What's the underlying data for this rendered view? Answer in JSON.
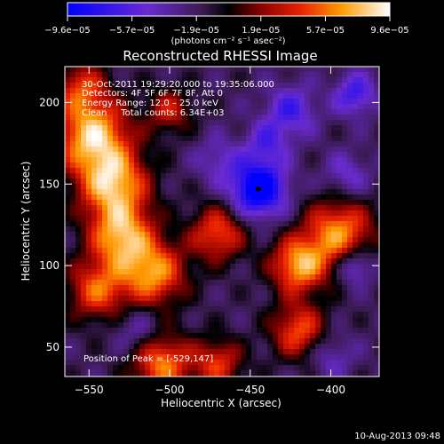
{
  "chart_data": {
    "type": "heatmap",
    "title": "Reconstructed RHESSI Image",
    "xlabel": "Heliocentric X (arcsec)",
    "ylabel": "Heliocentric Y (arcsec)",
    "xlim": [
      -565,
      -370
    ],
    "ylim": [
      32,
      222
    ],
    "x_ticks": [
      -550,
      -500,
      -450,
      -400
    ],
    "y_ticks": [
      50,
      100,
      150,
      200
    ],
    "x_tick_labels": [
      "−550",
      "−500",
      "−450",
      "−400"
    ],
    "y_tick_labels": [
      "50",
      "100",
      "150",
      "200"
    ],
    "colorbar": {
      "min": -9.6e-05,
      "max": 9.6e-05,
      "tick_labels": [
        "−9.6e−05",
        "−5.7e−05",
        "−1.9e−05",
        "1.9e−05",
        "5.7e−05",
        "9.6e−05"
      ],
      "units": "(photons cm⁻² s⁻¹ asec⁻²)"
    },
    "info_lines": [
      "30-Oct-2011 19:29:20.000 to 19:35:06.000",
      "Detectors: 4F 5F 6F 7F 8F, Att 0",
      "Energy Range: 12.0 – 25.0 keV",
      "Clean     Total counts: 6.34E+03"
    ],
    "peak": {
      "x": -529,
      "y": 147,
      "label": "Position of Peak = [-529,147]"
    },
    "blobs": [
      {
        "x": -548,
        "y": 180,
        "amp": 1.0,
        "r": 16
      },
      {
        "x": -535,
        "y": 150,
        "amp": 0.95,
        "r": 15
      },
      {
        "x": -530,
        "y": 118,
        "amp": 0.9,
        "r": 14
      },
      {
        "x": -510,
        "y": 95,
        "amp": 0.85,
        "r": 14
      },
      {
        "x": -545,
        "y": 85,
        "amp": 0.7,
        "r": 13
      },
      {
        "x": -555,
        "y": 210,
        "amp": 0.55,
        "r": 11
      },
      {
        "x": -470,
        "y": 120,
        "amp": 0.7,
        "r": 12
      },
      {
        "x": -395,
        "y": 120,
        "amp": 0.85,
        "r": 15
      },
      {
        "x": -420,
        "y": 100,
        "amp": 0.9,
        "r": 12
      },
      {
        "x": -420,
        "y": 60,
        "amp": 0.7,
        "r": 12
      },
      {
        "x": -505,
        "y": 40,
        "amp": 0.8,
        "r": 13
      },
      {
        "x": -470,
        "y": 40,
        "amp": 0.6,
        "r": 11
      },
      {
        "x": -500,
        "y": 195,
        "amp": 0.5,
        "r": 10
      },
      {
        "x": -445,
        "y": 147,
        "amp": -1.0,
        "r": 12
      },
      {
        "x": -425,
        "y": 195,
        "amp": -0.5,
        "r": 11
      },
      {
        "x": -385,
        "y": 205,
        "amp": -0.55,
        "r": 9
      },
      {
        "x": -385,
        "y": 100,
        "amp": -0.55,
        "r": 8
      },
      {
        "x": -440,
        "y": 175,
        "amp": -0.4,
        "r": 9
      },
      {
        "x": -470,
        "y": 165,
        "amp": -0.3,
        "r": 10
      },
      {
        "x": -390,
        "y": 155,
        "amp": -0.35,
        "r": 10
      },
      {
        "x": -520,
        "y": 60,
        "amp": -0.3,
        "r": 10
      },
      {
        "x": -400,
        "y": 45,
        "amp": -0.3,
        "r": 10
      }
    ],
    "grid": false,
    "legend": "none"
  },
  "footer": {
    "date": "10-Aug-2013 09:48"
  }
}
